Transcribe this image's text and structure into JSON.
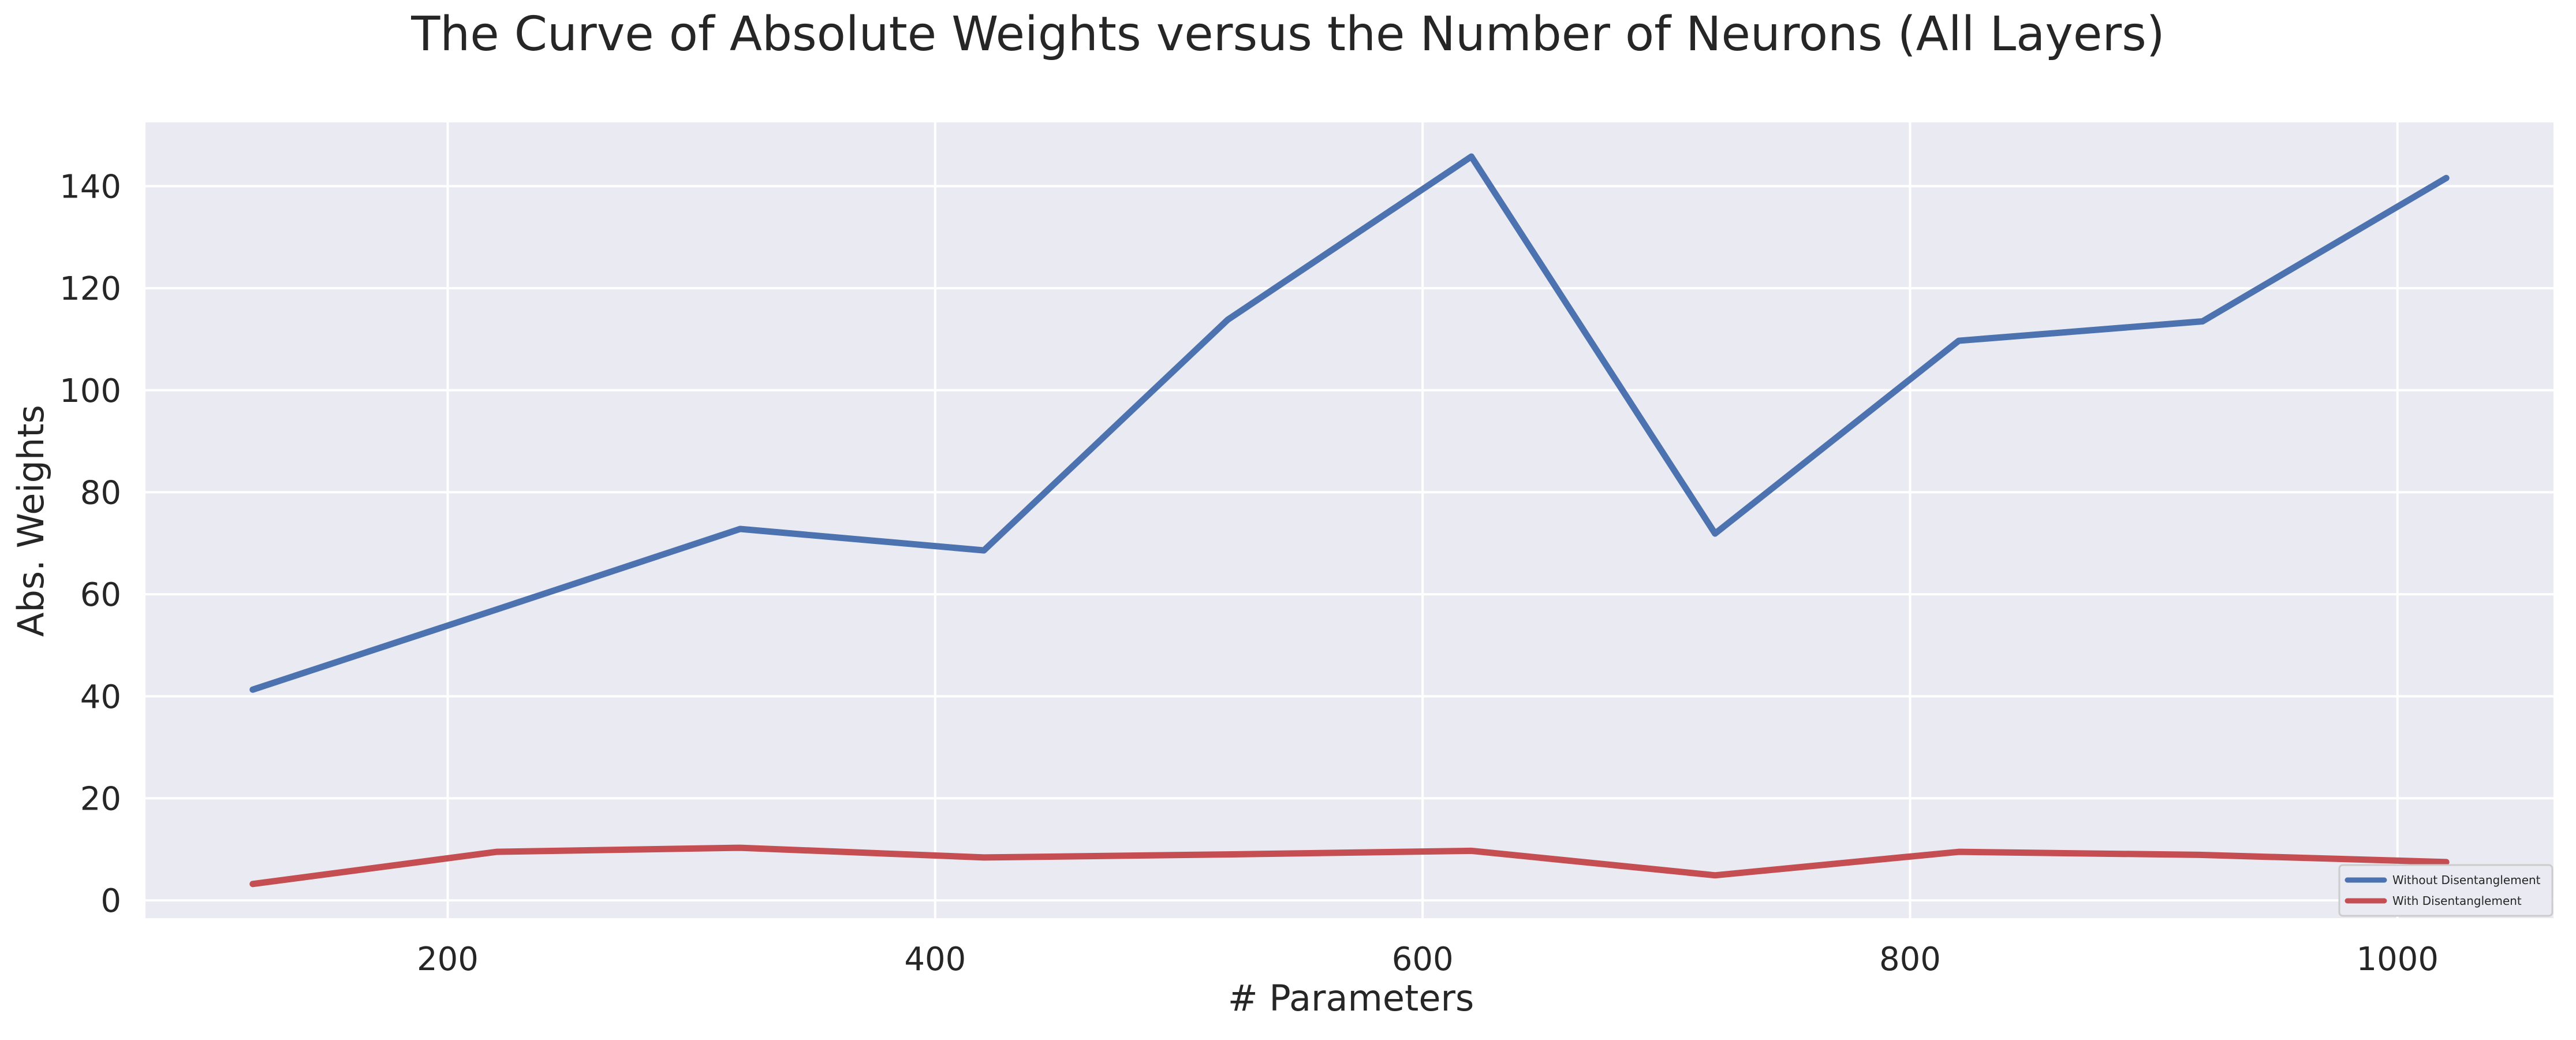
{
  "chart_data": {
    "type": "line",
    "title": "The Curve of Absolute Weights versus the Number of Neurons (All Layers)",
    "xlabel": "# Parameters",
    "ylabel": "Abs. Weights",
    "x": [
      120,
      220,
      320,
      420,
      520,
      620,
      720,
      820,
      920,
      1020
    ],
    "xlim": [
      76,
      1064
    ],
    "ylim": [
      -3.5,
      152.5
    ],
    "xticks": [
      200,
      400,
      600,
      800,
      1000
    ],
    "yticks": [
      0,
      20,
      40,
      60,
      80,
      100,
      120,
      140
    ],
    "grid": true,
    "legend_position": "lower-right",
    "series": [
      {
        "name": "Without Disentanglement",
        "color": "#4c72b0",
        "values": [
          41.3,
          57.0,
          72.8,
          68.6,
          113.8,
          145.8,
          71.9,
          109.7,
          113.5,
          141.6
        ]
      },
      {
        "name": "With Disentanglement",
        "color": "#c44e52",
        "values": [
          3.2,
          9.5,
          10.3,
          8.4,
          9.0,
          9.7,
          4.9,
          9.5,
          8.9,
          7.5
        ]
      }
    ],
    "colors": {
      "background": "#eaeaf2",
      "grid": "#ffffff",
      "text": "#262626"
    }
  }
}
